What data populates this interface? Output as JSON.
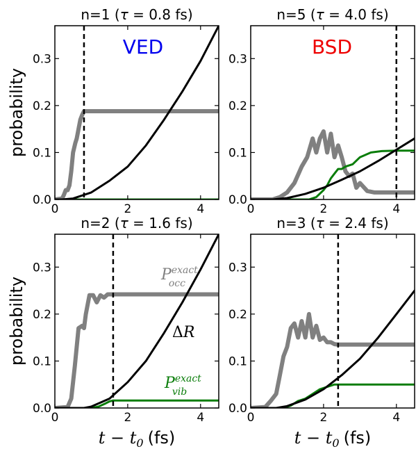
{
  "figure": {
    "ylabel": "probability",
    "xlabel_math": "t − t",
    "xlabel_sub": "0",
    "xlabel_unit": "(fs)",
    "xlim": [
      0,
      4.5
    ],
    "ylim": [
      0,
      0.37
    ],
    "xticks": [
      0,
      2,
      4
    ],
    "yticks": [
      0.0,
      0.1,
      0.2,
      0.3
    ],
    "colors": {
      "occ": "#808080",
      "vib": "#0a7d0a",
      "dR": "#000000",
      "VED": "#0000ee",
      "BSD": "#ee0000"
    }
  },
  "chart_data": [
    {
      "type": "line",
      "title_prefix": "n=1 (",
      "title_tau": "τ",
      "title_suffix": " = 0.8 fs)",
      "tau": 0.8,
      "panel_label": "VED",
      "panel_label_color": "#0000ee",
      "series": [
        {
          "color": "#808080",
          "x": [
            0,
            0.2,
            0.25,
            0.3,
            0.35,
            0.4,
            0.45,
            0.5,
            0.53,
            0.56,
            0.6,
            0.65,
            0.7,
            0.75,
            0.8,
            4.5
          ],
          "y": [
            0,
            0.002,
            0.01,
            0.02,
            0.02,
            0.03,
            0.06,
            0.1,
            0.11,
            0.12,
            0.13,
            0.15,
            0.17,
            0.18,
            0.188,
            0.188
          ]
        },
        {
          "color": "#0a7d0a",
          "x": [
            0,
            4.5
          ],
          "y": [
            0,
            0
          ]
        },
        {
          "color": "#000000",
          "x": [
            0,
            0.2,
            0.5,
            1,
            1.5,
            2,
            2.5,
            3,
            3.5,
            4,
            4.5
          ],
          "y": [
            0,
            0.0,
            0.002,
            0.015,
            0.04,
            0.07,
            0.115,
            0.17,
            0.23,
            0.295,
            0.37
          ]
        }
      ]
    },
    {
      "type": "line",
      "title_prefix": "n=5 (",
      "title_tau": "τ",
      "title_suffix": " = 4.0 fs)",
      "tau": 4.0,
      "panel_label": "BSD",
      "panel_label_color": "#ee0000",
      "series": [
        {
          "color": "#808080",
          "x": [
            0,
            0.6,
            0.8,
            1.0,
            1.2,
            1.4,
            1.55,
            1.7,
            1.8,
            1.9,
            2.0,
            2.1,
            2.2,
            2.3,
            2.4,
            2.5,
            2.6,
            2.7,
            2.8,
            2.9,
            3.0,
            3.2,
            3.4,
            4.5
          ],
          "y": [
            0,
            0,
            0.005,
            0.015,
            0.035,
            0.07,
            0.09,
            0.13,
            0.1,
            0.13,
            0.145,
            0.1,
            0.14,
            0.09,
            0.115,
            0.09,
            0.06,
            0.05,
            0.055,
            0.025,
            0.035,
            0.018,
            0.015,
            0.015
          ]
        },
        {
          "color": "#0a7d0a",
          "x": [
            0,
            1.6,
            1.8,
            2.0,
            2.1,
            2.2,
            2.3,
            2.4,
            2.5,
            2.6,
            2.8,
            3.0,
            3.3,
            3.6,
            4.0,
            4.5
          ],
          "y": [
            0,
            0,
            0.005,
            0.02,
            0.03,
            0.045,
            0.055,
            0.065,
            0.065,
            0.07,
            0.075,
            0.09,
            0.1,
            0.103,
            0.104,
            0.104
          ]
        },
        {
          "color": "#000000",
          "x": [
            0,
            0.6,
            1.0,
            1.5,
            2.0,
            2.5,
            3.0,
            3.5,
            4.0,
            4.5
          ],
          "y": [
            0,
            0.0,
            0.003,
            0.012,
            0.025,
            0.042,
            0.06,
            0.082,
            0.106,
            0.13
          ]
        }
      ]
    },
    {
      "type": "line",
      "title_prefix": "n=2 (",
      "title_tau": "τ",
      "title_suffix": " = 1.6 fs)",
      "tau": 1.6,
      "series": [
        {
          "color": "#808080",
          "x": [
            0,
            0.35,
            0.45,
            0.55,
            0.65,
            0.75,
            0.8,
            0.85,
            0.95,
            1.05,
            1.15,
            1.25,
            1.35,
            1.45,
            1.6,
            4.5
          ],
          "y": [
            0,
            0.002,
            0.02,
            0.09,
            0.17,
            0.175,
            0.17,
            0.2,
            0.24,
            0.24,
            0.225,
            0.24,
            0.235,
            0.242,
            0.242,
            0.242
          ]
        },
        {
          "color": "#0a7d0a",
          "x": [
            0,
            1.0,
            1.2,
            1.4,
            1.5,
            1.6,
            4.5
          ],
          "y": [
            0,
            0,
            0.003,
            0.01,
            0.014,
            0.016,
            0.016
          ]
        },
        {
          "color": "#000000",
          "x": [
            0,
            0.8,
            1.0,
            1.5,
            2.0,
            2.5,
            3.0,
            3.5,
            4.0,
            4.5
          ],
          "y": [
            0,
            0.0,
            0.003,
            0.02,
            0.055,
            0.1,
            0.16,
            0.225,
            0.295,
            0.37
          ]
        }
      ]
    },
    {
      "type": "line",
      "title_prefix": "n=3 (",
      "title_tau": "τ",
      "title_suffix": " = 2.4 fs)",
      "tau": 2.4,
      "series": [
        {
          "color": "#808080",
          "x": [
            0,
            0.4,
            0.55,
            0.7,
            0.8,
            0.9,
            1.0,
            1.1,
            1.2,
            1.3,
            1.4,
            1.5,
            1.6,
            1.7,
            1.8,
            1.9,
            2.0,
            2.1,
            2.2,
            2.3,
            2.4,
            4.5
          ],
          "y": [
            0,
            0.002,
            0.015,
            0.03,
            0.07,
            0.11,
            0.13,
            0.17,
            0.18,
            0.15,
            0.185,
            0.15,
            0.2,
            0.15,
            0.175,
            0.145,
            0.15,
            0.14,
            0.14,
            0.136,
            0.135,
            0.135
          ]
        },
        {
          "color": "#0a7d0a",
          "x": [
            0,
            0.9,
            1.1,
            1.3,
            1.5,
            1.7,
            1.9,
            2.1,
            2.3,
            2.4,
            4.5
          ],
          "y": [
            0,
            0,
            0.005,
            0.015,
            0.02,
            0.03,
            0.04,
            0.045,
            0.05,
            0.05,
            0.05
          ]
        },
        {
          "color": "#000000",
          "x": [
            0,
            0.7,
            1.0,
            1.5,
            2.0,
            2.5,
            3.0,
            3.5,
            4.0,
            4.5
          ],
          "y": [
            0,
            0.0,
            0.004,
            0.018,
            0.04,
            0.07,
            0.105,
            0.15,
            0.2,
            0.25
          ]
        }
      ]
    }
  ],
  "annotations": {
    "occ_main": "P",
    "occ_sup": "exact",
    "occ_sub": "occ",
    "dr_delta": "Δ",
    "dr_var": "R",
    "vib_main": "P",
    "vib_sup": "exact",
    "vib_sub": "vib"
  }
}
